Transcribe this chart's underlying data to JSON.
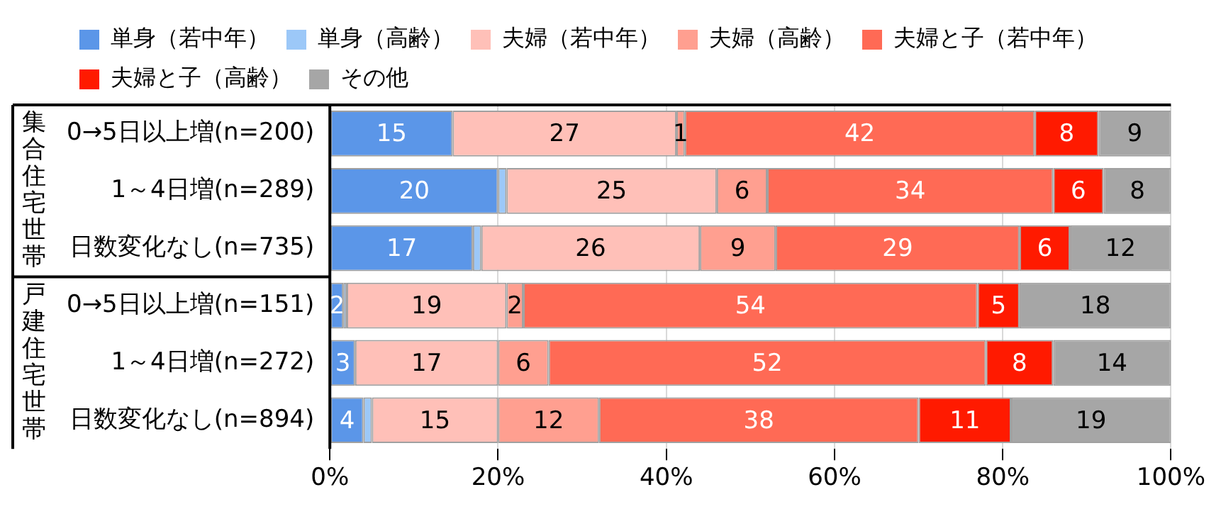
{
  "chart_data": {
    "type": "bar",
    "orientation": "horizontal",
    "stacked": true,
    "categories": [
      "0→5日以上増(n=200)",
      "1～4日増(n=289)",
      "日数変化なし(n=735)",
      "0→5日以上増(n=151)",
      "1～4日増(n=272)",
      "日数変化なし(n=894)"
    ],
    "annotations": [
      "集合住宅世帯",
      "戸建住宅世帯"
    ],
    "series": [
      {
        "name": "単身（若中年）",
        "color": "#5b96e8",
        "values": [
          14.6,
          20,
          17,
          1.6,
          3,
          4
        ],
        "value_labels": [
          "15",
          "20",
          "17",
          "2",
          "3",
          "4"
        ]
      },
      {
        "name": "単身（高齢）",
        "color": "#9cc8f8",
        "values": [
          0,
          1,
          1,
          0.4,
          0,
          1
        ],
        "value_labels": [
          null,
          null,
          null,
          null,
          null,
          null
        ]
      },
      {
        "name": "夫婦（若中年）",
        "color": "#ffc0b8",
        "values": [
          26.6,
          25,
          26,
          19,
          17,
          15
        ],
        "value_labels": [
          "27",
          "25",
          "26",
          "19",
          "17",
          "15"
        ]
      },
      {
        "name": "夫婦（高齢）",
        "color": "#ff9f90",
        "values": [
          1,
          6,
          9,
          2,
          6,
          12
        ],
        "value_labels": [
          "1",
          "6",
          "9",
          "2",
          "6",
          "12"
        ]
      },
      {
        "name": "夫婦と子（若中年）",
        "color": "#ff6a55",
        "values": [
          41.6,
          34,
          29,
          54,
          52,
          38
        ],
        "value_labels": [
          "42",
          "34",
          "29",
          "54",
          "52",
          "38"
        ]
      },
      {
        "name": "夫婦と子（高齢）",
        "color": "#ff1a00",
        "values": [
          7.6,
          6,
          6,
          5,
          8,
          11
        ],
        "value_labels": [
          "8",
          "6",
          "6",
          "5",
          "8",
          "11"
        ]
      },
      {
        "name": "その他",
        "color": "#a6a6a6",
        "values": [
          8.6,
          8,
          12,
          18,
          14,
          19
        ],
        "value_labels": [
          "9",
          "8",
          "12",
          "18",
          "14",
          "19"
        ]
      }
    ],
    "xlim": [
      0,
      100
    ],
    "xticks": [
      {
        "value": 0,
        "label": "0%"
      },
      {
        "value": 20,
        "label": "20%"
      },
      {
        "value": 40,
        "label": "40%"
      },
      {
        "value": 60,
        "label": "60%"
      },
      {
        "value": 80,
        "label": "80%"
      },
      {
        "value": 100,
        "label": "100%"
      }
    ],
    "grid": "x",
    "legend": "top"
  }
}
